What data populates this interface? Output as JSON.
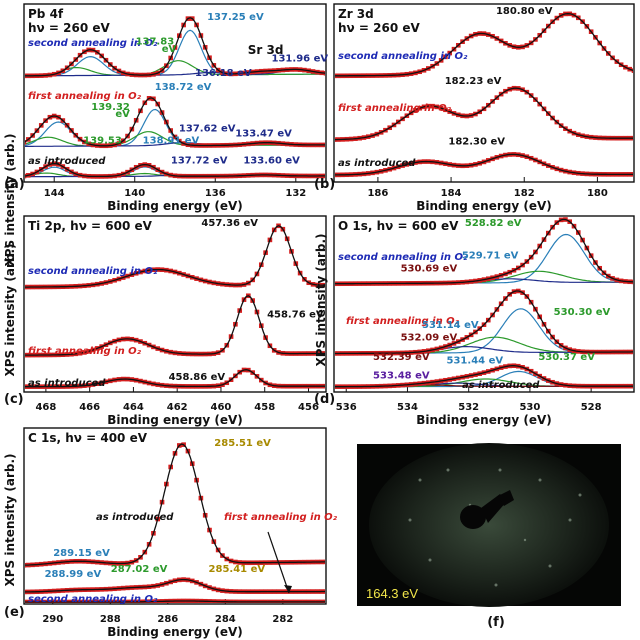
{
  "ylabel": "XPS intensity (arb.)",
  "chart_data": [
    {
      "id": "a",
      "type": "line",
      "panel_label": "(a)",
      "title_lines": [
        "Pb 4f",
        "hν = 260 eV"
      ],
      "xlabel": "Binding energy (eV)",
      "xlim": [
        145.5,
        130.5
      ],
      "xticks": [
        144,
        140,
        136,
        132
      ],
      "xtick_labels": [
        "144",
        "140",
        "136",
        "132"
      ],
      "extra_labels": [
        {
          "text": "Sr 3d",
          "x": 133.5,
          "color": "#111111"
        }
      ],
      "spectra": [
        {
          "condition": "second annealing in O₂",
          "condition_color": "#1e2bb5",
          "offset": 0.62,
          "scale": 0.34,
          "peaks": [
            [
              142.2,
              0.45,
              0.75
            ],
            [
              137.25,
              1.0,
              0.62
            ],
            [
              131.96,
              0.08,
              0.8
            ],
            [
              133.7,
              0.05,
              0.8
            ]
          ],
          "components": [
            [
              [
                142.2,
                0.33,
                0.65
              ],
              [
                137.25,
                0.78,
                0.55
              ]
            ],
            [
              [
                142.9,
                0.14,
                0.7
              ],
              [
                137.83,
                0.25,
                0.7
              ]
            ],
            [
              [
                131.96,
                0.08,
                0.8
              ],
              [
                136.18,
                0.04,
                0.8
              ]
            ]
          ],
          "labels": [
            {
              "text": "137.25 eV",
              "color": "#2a7fb8",
              "x": 135.0,
              "dy": 0.98
            },
            {
              "text": "137.83",
              "color": "#2c9a2c",
              "x": 139.0,
              "dy": 0.55
            },
            {
              "text": "eV",
              "color": "#2c9a2c",
              "x": 138.3,
              "dy": 0.42
            },
            {
              "text": "131.96 eV",
              "color": "#1e2b8a",
              "x": 131.8,
              "dy": 0.25
            },
            {
              "text": "136.18 eV",
              "color": "#1e2b8a",
              "x": 135.6,
              "dy": 0.0
            }
          ]
        },
        {
          "condition": "first annealing in O₂",
          "condition_color": "#d21f1f",
          "offset": 0.2,
          "scale": 0.3,
          "peaks": [
            [
              144.0,
              0.6,
              0.75
            ],
            [
              139.2,
              0.95,
              0.65
            ],
            [
              133.47,
              0.05,
              0.8
            ]
          ],
          "components": [
            [
              [
                143.8,
                0.48,
                0.65
              ],
              [
                139.0,
                0.72,
                0.55
              ]
            ],
            [
              [
                144.3,
                0.18,
                0.7
              ],
              [
                139.32,
                0.28,
                0.7
              ]
            ],
            [
              [
                137.62,
                0.06,
                0.8
              ],
              [
                133.47,
                0.05,
                0.8
              ]
            ]
          ],
          "labels": [
            {
              "text": "138.72 eV",
              "color": "#2a7fb8",
              "x": 137.6,
              "dy": 1.12
            },
            {
              "text": "139.32",
              "color": "#2c9a2c",
              "x": 141.2,
              "dy": 0.72
            },
            {
              "text": "eV",
              "color": "#2c9a2c",
              "x": 140.6,
              "dy": 0.58
            },
            {
              "text": "137.62 eV",
              "color": "#1e2b8a",
              "x": 136.4,
              "dy": 0.3
            },
            {
              "text": "133.47 eV",
              "color": "#1e2b8a",
              "x": 133.6,
              "dy": 0.2
            }
          ]
        },
        {
          "condition": "as introduced",
          "condition_color": "#111111",
          "offset": 0.02,
          "scale": 0.14,
          "peaks": [
            [
              144.0,
              0.55,
              0.6
            ],
            [
              139.5,
              0.5,
              0.6
            ],
            [
              133.6,
              0.05,
              0.8
            ]
          ],
          "components": [
            [
              [
                144.0,
                0.4,
                0.55
              ],
              [
                139.5,
                0.4,
                0.55
              ]
            ],
            [
              [
                144.4,
                0.15,
                0.6
              ],
              [
                139.53,
                0.12,
                0.6
              ]
            ],
            [
              [
                137.72,
                0.06,
                0.8
              ],
              [
                133.6,
                0.05,
                0.8
              ]
            ]
          ],
          "labels": [
            {
              "text": "139.53",
              "color": "#2c9a2c",
              "x": 141.6,
              "dy": 1.4
            },
            {
              "text": "138.91 eV",
              "color": "#2a7fb8",
              "x": 138.2,
              "dy": 1.4
            },
            {
              "text": "137.72 eV",
              "color": "#1e2b8a",
              "x": 136.8,
              "dy": 0.55
            },
            {
              "text": "133.60 eV",
              "color": "#1e2b8a",
              "x": 133.2,
              "dy": 0.55
            }
          ]
        }
      ]
    },
    {
      "id": "b",
      "type": "line",
      "panel_label": "(b)",
      "title_lines": [
        "Zr 3d",
        "hν = 260 eV"
      ],
      "xlabel": "Binding energy (eV)",
      "xlim": [
        187.2,
        179.0
      ],
      "xticks": [
        186,
        184,
        182,
        180
      ],
      "xtick_labels": [
        "186",
        "184",
        "182",
        "180"
      ],
      "extra_labels": [],
      "spectra": [
        {
          "condition": "second annealing in O₂",
          "condition_color": "#1e2bb5",
          "offset": 0.62,
          "scale": 0.36,
          "peaks": [
            [
              183.2,
              0.68,
              0.75
            ],
            [
              180.8,
              1.0,
              0.75
            ]
          ],
          "components": [],
          "labels": [
            {
              "text": "180.80 eV",
              "color": "#111111",
              "x": 182.0,
              "dy": 1.05
            }
          ]
        },
        {
          "condition": "first annealing in O₂",
          "condition_color": "#d21f1f",
          "offset": 0.24,
          "scale": 0.3,
          "peaks": [
            [
              184.6,
              0.65,
              0.75
            ],
            [
              182.23,
              1.0,
              0.75
            ]
          ],
          "components": [],
          "labels": [
            {
              "text": "182.23 eV",
              "color": "#111111",
              "x": 183.4,
              "dy": 1.1
            }
          ]
        },
        {
          "condition": "as introduced",
          "condition_color": "#111111",
          "offset": 0.03,
          "scale": 0.12,
          "peaks": [
            [
              184.7,
              0.65,
              0.75
            ],
            [
              182.3,
              1.0,
              0.75
            ]
          ],
          "components": [],
          "labels": [
            {
              "text": "182.30 eV",
              "color": "#111111",
              "x": 183.3,
              "dy": 1.5
            }
          ]
        }
      ]
    },
    {
      "id": "c",
      "type": "line",
      "panel_label": "(c)",
      "title_lines": [
        "Ti 2p, hν = 600 eV"
      ],
      "xlabel": "Binding energy (eV)",
      "xlim": [
        469.0,
        455.2
      ],
      "xticks": [
        468,
        466,
        464,
        462,
        460,
        458,
        456
      ],
      "xtick_labels": [
        "468",
        "466",
        "464",
        "462",
        "460",
        "458",
        "456"
      ],
      "extra_labels": [],
      "spectra": [
        {
          "condition": "second annealing in O₂",
          "condition_color": "#1e2bb5",
          "offset": 0.62,
          "scale": 0.36,
          "peaks": [
            [
              462.9,
              0.28,
              1.4
            ],
            [
              457.36,
              1.0,
              0.55
            ]
          ],
          "components": [],
          "labels": [
            {
              "text": "457.36 eV",
              "color": "#111111",
              "x": 459.6,
              "dy": 1.05
            }
          ]
        },
        {
          "condition": "first annealing in O₂",
          "condition_color": "#d21f1f",
          "offset": 0.21,
          "scale": 0.35,
          "peaks": [
            [
              464.3,
              0.27,
              1.0
            ],
            [
              458.76,
              1.0,
              0.5
            ]
          ],
          "components": [],
          "labels": [
            {
              "text": "458.76 eV",
              "color": "#111111",
              "x": 456.6,
              "dy": 0.65
            }
          ]
        },
        {
          "condition": "as introduced",
          "condition_color": "#111111",
          "offset": 0.02,
          "scale": 0.1,
          "peaks": [
            [
              464.4,
              0.45,
              0.9
            ],
            [
              458.86,
              1.0,
              0.5
            ]
          ],
          "components": [],
          "labels": [
            {
              "text": "458.86 eV",
              "color": "#111111",
              "x": 461.1,
              "dy": 0.4
            }
          ]
        }
      ]
    },
    {
      "id": "d",
      "type": "line",
      "panel_label": "(d)",
      "title_lines": [
        "O 1s, hν = 600 eV"
      ],
      "xlabel": "Binding energy (eV)",
      "xlim": [
        536.4,
        526.6
      ],
      "xticks": [
        536,
        534,
        532,
        530,
        528
      ],
      "xtick_labels": [
        "536",
        "534",
        "532",
        "530",
        "528"
      ],
      "extra_labels": [],
      "spectra": [
        {
          "condition": "second annealing in O₂",
          "condition_color": "#1e2bb5",
          "offset": 0.64,
          "scale": 0.34,
          "peaks": [
            [
              528.82,
              1.0,
              0.65
            ],
            [
              529.71,
              0.2,
              0.8
            ],
            [
              530.69,
              0.07,
              0.8
            ]
          ],
          "components": [
            [
              [
                528.82,
                0.85,
                0.6
              ]
            ],
            [
              [
                529.71,
                0.2,
                0.8
              ]
            ],
            [
              [
                530.69,
                0.07,
                0.8
              ]
            ]
          ],
          "labels": [
            {
              "text": "528.82 eV",
              "color": "#2c9a2c",
              "x": 531.2,
              "dy": 1.02
            },
            {
              "text": "529.71 eV",
              "color": "#2a7fb8",
              "x": 531.3,
              "dy": 0.45
            },
            {
              "text": "530.69 eV",
              "color": "#7a1010",
              "x": 533.3,
              "dy": 0.22
            }
          ]
        },
        {
          "condition": "first annealing in O₂",
          "condition_color": "#d21f1f",
          "offset": 0.22,
          "scale": 0.31,
          "peaks": [
            [
              530.3,
              1.0,
              0.65
            ],
            [
              531.14,
              0.3,
              0.8
            ],
            [
              532.09,
              0.12,
              0.8
            ]
          ],
          "components": [
            [
              [
                530.3,
                0.85,
                0.6
              ]
            ],
            [
              [
                531.14,
                0.3,
                0.8
              ]
            ],
            [
              [
                532.09,
                0.12,
                0.8
              ]
            ]
          ],
          "labels": [
            {
              "text": "530.30 eV",
              "color": "#2c9a2c",
              "x": 528.3,
              "dy": 0.75
            },
            {
              "text": "531.14 eV",
              "color": "#2a7fb8",
              "x": 532.6,
              "dy": 0.5
            },
            {
              "text": "532.09 eV",
              "color": "#7a1010",
              "x": 533.3,
              "dy": 0.25
            }
          ]
        },
        {
          "condition": "as introduced",
          "condition_color": "#111111",
          "offset": 0.02,
          "scale": 0.1,
          "peaks": [
            [
              530.37,
              1.0,
              0.65
            ],
            [
              531.44,
              0.5,
              0.8
            ],
            [
              532.39,
              0.2,
              0.8
            ],
            [
              533.48,
              0.1,
              0.8
            ]
          ],
          "components": [
            [
              [
                530.37,
                0.9,
                0.6
              ]
            ],
            [
              [
                531.44,
                0.45,
                0.8
              ]
            ],
            [
              [
                532.39,
                0.2,
                0.8
              ]
            ],
            [
              [
                533.48,
                0.1,
                0.8
              ]
            ]
          ],
          "labels": [
            {
              "text": "530.37 eV",
              "color": "#2c9a2c",
              "x": 528.8,
              "dy": 1.6
            },
            {
              "text": "531.44 eV",
              "color": "#2a7fb8",
              "x": 531.8,
              "dy": 1.4
            },
            {
              "text": "532.39 eV",
              "color": "#7a1010",
              "x": 534.2,
              "dy": 1.6
            },
            {
              "text": "533.48 eV",
              "color": "#5a20a0",
              "x": 534.2,
              "dy": 0.5
            }
          ]
        }
      ]
    },
    {
      "id": "e",
      "type": "line",
      "panel_label": "(e)",
      "title_lines": [
        "C 1s, hν = 400 eV"
      ],
      "xlabel": "Binding energy (eV)",
      "xlim": [
        291.0,
        280.5
      ],
      "xticks": [
        290,
        288,
        286,
        284,
        282
      ],
      "xtick_labels": [
        "290",
        "288",
        "286",
        "284",
        "282"
      ],
      "extra_labels": [],
      "spectra": [
        {
          "condition": "as introduced",
          "condition_color": "#111111",
          "offset": 0.22,
          "scale": 0.72,
          "peaks": [
            [
              285.51,
              1.0,
              0.6
            ],
            [
              289.15,
              0.03,
              0.8
            ]
          ],
          "components": [],
          "labels": [
            {
              "text": "285.51 eV",
              "color": "#a88a00",
              "x": 283.4,
              "dy": 1.0
            },
            {
              "text": "289.15 eV",
              "color": "#2a7fb8",
              "x": 289.0,
              "dy": 0.08
            }
          ]
        },
        {
          "condition": "first annealing in O₂",
          "condition_color": "#d21f1f",
          "offset": 0.06,
          "scale": 0.1,
          "peaks": [
            [
              285.41,
              0.7,
              0.6
            ],
            [
              287.02,
              0.25,
              0.8
            ],
            [
              288.99,
              0.12,
              0.8
            ]
          ],
          "components": [],
          "labels": [
            {
              "text": "285.41 eV",
              "color": "#a88a00",
              "x": 283.6,
              "dy": 1.2
            },
            {
              "text": "287.02 eV",
              "color": "#2c9a2c",
              "x": 287.0,
              "dy": 1.2
            },
            {
              "text": "288.99 eV",
              "color": "#2a7fb8",
              "x": 289.3,
              "dy": 0.9
            }
          ]
        },
        {
          "condition": "second annealing in O₂",
          "condition_color": "#1e2bb5",
          "offset": 0.0,
          "scale": 0.02,
          "peaks": [
            [
              285.4,
              0.3,
              0.8
            ]
          ],
          "components": [],
          "labels": []
        }
      ]
    }
  ],
  "photo": {
    "panel_label": "(f)",
    "caption": "164.3 eV"
  }
}
